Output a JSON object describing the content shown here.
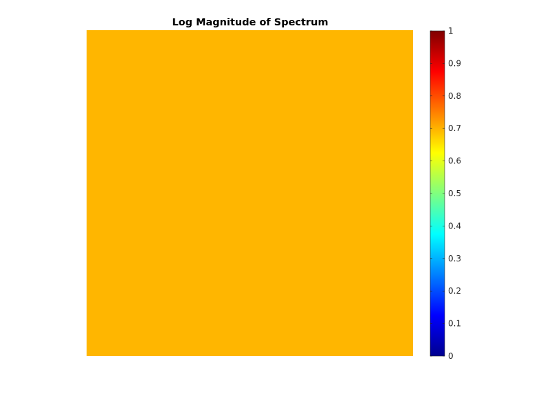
{
  "chart_data": {
    "type": "heatmap",
    "title": "Log Magnitude of Spectrum",
    "xlabel": "",
    "ylabel": "",
    "grid": false,
    "axis_visible": false,
    "values": [
      [
        0.72
      ]
    ],
    "fill_color": "#FFB600",
    "colormap": "jet",
    "colorbar": {
      "location": "right",
      "range": [
        0,
        1
      ],
      "ticks": [
        0,
        0.1,
        0.2,
        0.3,
        0.4,
        0.5,
        0.6,
        0.7,
        0.8,
        0.9,
        1
      ],
      "tick_labels": [
        "0",
        "0.1",
        "0.2",
        "0.3",
        "0.4",
        "0.5",
        "0.6",
        "0.7",
        "0.8",
        "0.9",
        "1"
      ]
    }
  }
}
